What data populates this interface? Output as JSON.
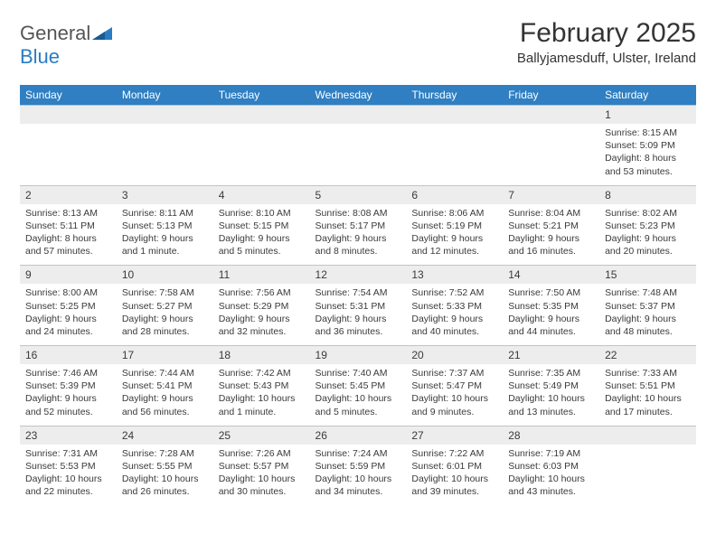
{
  "logo": {
    "text1": "General",
    "text2": "Blue"
  },
  "title": "February 2025",
  "location": "Ballyjamesduff, Ulster, Ireland",
  "colors": {
    "header_bg": "#2f7fc2",
    "header_text": "#ffffff",
    "daynum_bg": "#ededed",
    "border": "#c3c3c3",
    "text": "#3a3a3a",
    "logo_gray": "#555558",
    "logo_blue": "#2a7cc4"
  },
  "day_headers": [
    "Sunday",
    "Monday",
    "Tuesday",
    "Wednesday",
    "Thursday",
    "Friday",
    "Saturday"
  ],
  "weeks": [
    [
      {
        "n": "",
        "sr": "",
        "ss": "",
        "dl": ""
      },
      {
        "n": "",
        "sr": "",
        "ss": "",
        "dl": ""
      },
      {
        "n": "",
        "sr": "",
        "ss": "",
        "dl": ""
      },
      {
        "n": "",
        "sr": "",
        "ss": "",
        "dl": ""
      },
      {
        "n": "",
        "sr": "",
        "ss": "",
        "dl": ""
      },
      {
        "n": "",
        "sr": "",
        "ss": "",
        "dl": ""
      },
      {
        "n": "1",
        "sr": "Sunrise: 8:15 AM",
        "ss": "Sunset: 5:09 PM",
        "dl": "Daylight: 8 hours and 53 minutes."
      }
    ],
    [
      {
        "n": "2",
        "sr": "Sunrise: 8:13 AM",
        "ss": "Sunset: 5:11 PM",
        "dl": "Daylight: 8 hours and 57 minutes."
      },
      {
        "n": "3",
        "sr": "Sunrise: 8:11 AM",
        "ss": "Sunset: 5:13 PM",
        "dl": "Daylight: 9 hours and 1 minute."
      },
      {
        "n": "4",
        "sr": "Sunrise: 8:10 AM",
        "ss": "Sunset: 5:15 PM",
        "dl": "Daylight: 9 hours and 5 minutes."
      },
      {
        "n": "5",
        "sr": "Sunrise: 8:08 AM",
        "ss": "Sunset: 5:17 PM",
        "dl": "Daylight: 9 hours and 8 minutes."
      },
      {
        "n": "6",
        "sr": "Sunrise: 8:06 AM",
        "ss": "Sunset: 5:19 PM",
        "dl": "Daylight: 9 hours and 12 minutes."
      },
      {
        "n": "7",
        "sr": "Sunrise: 8:04 AM",
        "ss": "Sunset: 5:21 PM",
        "dl": "Daylight: 9 hours and 16 minutes."
      },
      {
        "n": "8",
        "sr": "Sunrise: 8:02 AM",
        "ss": "Sunset: 5:23 PM",
        "dl": "Daylight: 9 hours and 20 minutes."
      }
    ],
    [
      {
        "n": "9",
        "sr": "Sunrise: 8:00 AM",
        "ss": "Sunset: 5:25 PM",
        "dl": "Daylight: 9 hours and 24 minutes."
      },
      {
        "n": "10",
        "sr": "Sunrise: 7:58 AM",
        "ss": "Sunset: 5:27 PM",
        "dl": "Daylight: 9 hours and 28 minutes."
      },
      {
        "n": "11",
        "sr": "Sunrise: 7:56 AM",
        "ss": "Sunset: 5:29 PM",
        "dl": "Daylight: 9 hours and 32 minutes."
      },
      {
        "n": "12",
        "sr": "Sunrise: 7:54 AM",
        "ss": "Sunset: 5:31 PM",
        "dl": "Daylight: 9 hours and 36 minutes."
      },
      {
        "n": "13",
        "sr": "Sunrise: 7:52 AM",
        "ss": "Sunset: 5:33 PM",
        "dl": "Daylight: 9 hours and 40 minutes."
      },
      {
        "n": "14",
        "sr": "Sunrise: 7:50 AM",
        "ss": "Sunset: 5:35 PM",
        "dl": "Daylight: 9 hours and 44 minutes."
      },
      {
        "n": "15",
        "sr": "Sunrise: 7:48 AM",
        "ss": "Sunset: 5:37 PM",
        "dl": "Daylight: 9 hours and 48 minutes."
      }
    ],
    [
      {
        "n": "16",
        "sr": "Sunrise: 7:46 AM",
        "ss": "Sunset: 5:39 PM",
        "dl": "Daylight: 9 hours and 52 minutes."
      },
      {
        "n": "17",
        "sr": "Sunrise: 7:44 AM",
        "ss": "Sunset: 5:41 PM",
        "dl": "Daylight: 9 hours and 56 minutes."
      },
      {
        "n": "18",
        "sr": "Sunrise: 7:42 AM",
        "ss": "Sunset: 5:43 PM",
        "dl": "Daylight: 10 hours and 1 minute."
      },
      {
        "n": "19",
        "sr": "Sunrise: 7:40 AM",
        "ss": "Sunset: 5:45 PM",
        "dl": "Daylight: 10 hours and 5 minutes."
      },
      {
        "n": "20",
        "sr": "Sunrise: 7:37 AM",
        "ss": "Sunset: 5:47 PM",
        "dl": "Daylight: 10 hours and 9 minutes."
      },
      {
        "n": "21",
        "sr": "Sunrise: 7:35 AM",
        "ss": "Sunset: 5:49 PM",
        "dl": "Daylight: 10 hours and 13 minutes."
      },
      {
        "n": "22",
        "sr": "Sunrise: 7:33 AM",
        "ss": "Sunset: 5:51 PM",
        "dl": "Daylight: 10 hours and 17 minutes."
      }
    ],
    [
      {
        "n": "23",
        "sr": "Sunrise: 7:31 AM",
        "ss": "Sunset: 5:53 PM",
        "dl": "Daylight: 10 hours and 22 minutes."
      },
      {
        "n": "24",
        "sr": "Sunrise: 7:28 AM",
        "ss": "Sunset: 5:55 PM",
        "dl": "Daylight: 10 hours and 26 minutes."
      },
      {
        "n": "25",
        "sr": "Sunrise: 7:26 AM",
        "ss": "Sunset: 5:57 PM",
        "dl": "Daylight: 10 hours and 30 minutes."
      },
      {
        "n": "26",
        "sr": "Sunrise: 7:24 AM",
        "ss": "Sunset: 5:59 PM",
        "dl": "Daylight: 10 hours and 34 minutes."
      },
      {
        "n": "27",
        "sr": "Sunrise: 7:22 AM",
        "ss": "Sunset: 6:01 PM",
        "dl": "Daylight: 10 hours and 39 minutes."
      },
      {
        "n": "28",
        "sr": "Sunrise: 7:19 AM",
        "ss": "Sunset: 6:03 PM",
        "dl": "Daylight: 10 hours and 43 minutes."
      },
      {
        "n": "",
        "sr": "",
        "ss": "",
        "dl": ""
      }
    ]
  ]
}
